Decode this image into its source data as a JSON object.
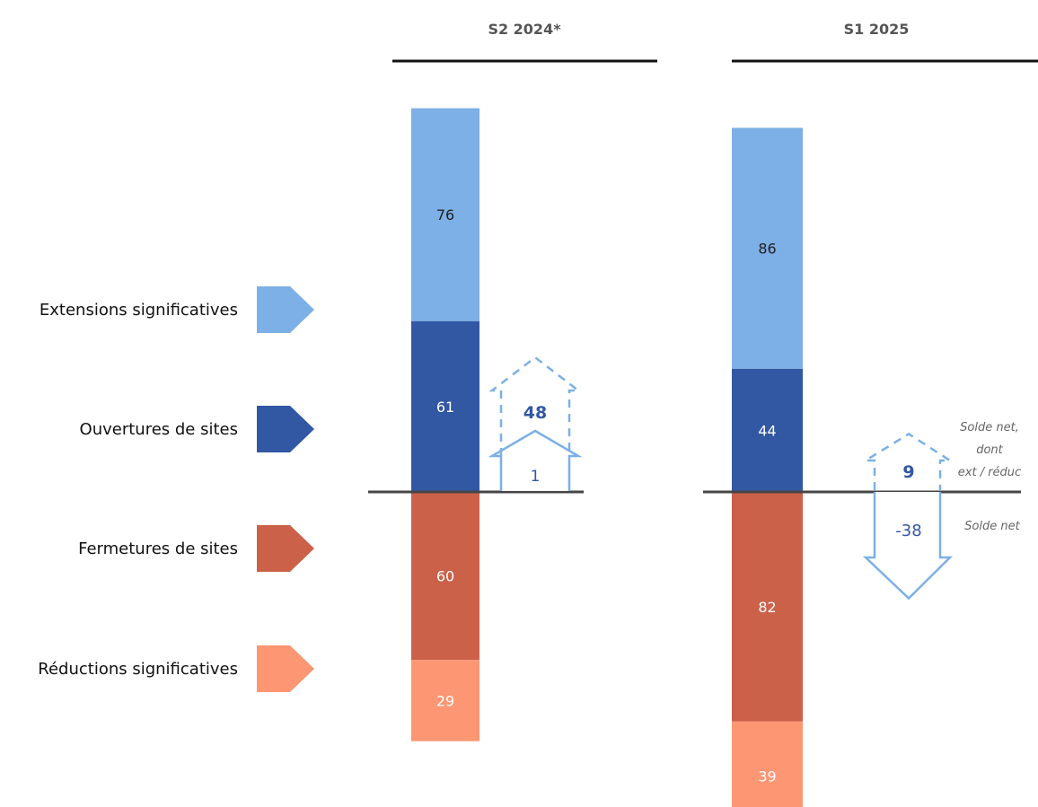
{
  "chart_data": {
    "type": "bar",
    "categories": [
      "S2 2024*",
      "S1 2025"
    ],
    "series": [
      {
        "name": "Extensions significatives",
        "values": [
          76,
          86
        ]
      },
      {
        "name": "Ouvertures de sites",
        "values": [
          61,
          44
        ]
      },
      {
        "name": "Fermetures de sites",
        "values": [
          60,
          82
        ]
      },
      {
        "name": "Réductions significatives",
        "values": [
          29,
          39
        ]
      }
    ],
    "net": [
      {
        "solde_net": "1",
        "ext_reduc": "48"
      },
      {
        "solde_net": "-38",
        "ext_reduc": "9"
      }
    ],
    "annotations": {
      "solde_net_dont": [
        "Solde net,",
        "dont",
        "ext / réduc"
      ],
      "solde_net": "Solde net"
    }
  },
  "colors": {
    "extensions": "#7cb0e6",
    "ouvertures": "#3257a3",
    "fermetures": "#cc614a",
    "reductions": "#fd9673",
    "arrow": "#7cb0e6",
    "net_text": "#3257a3",
    "axis": "#454545",
    "header": "#111111"
  }
}
